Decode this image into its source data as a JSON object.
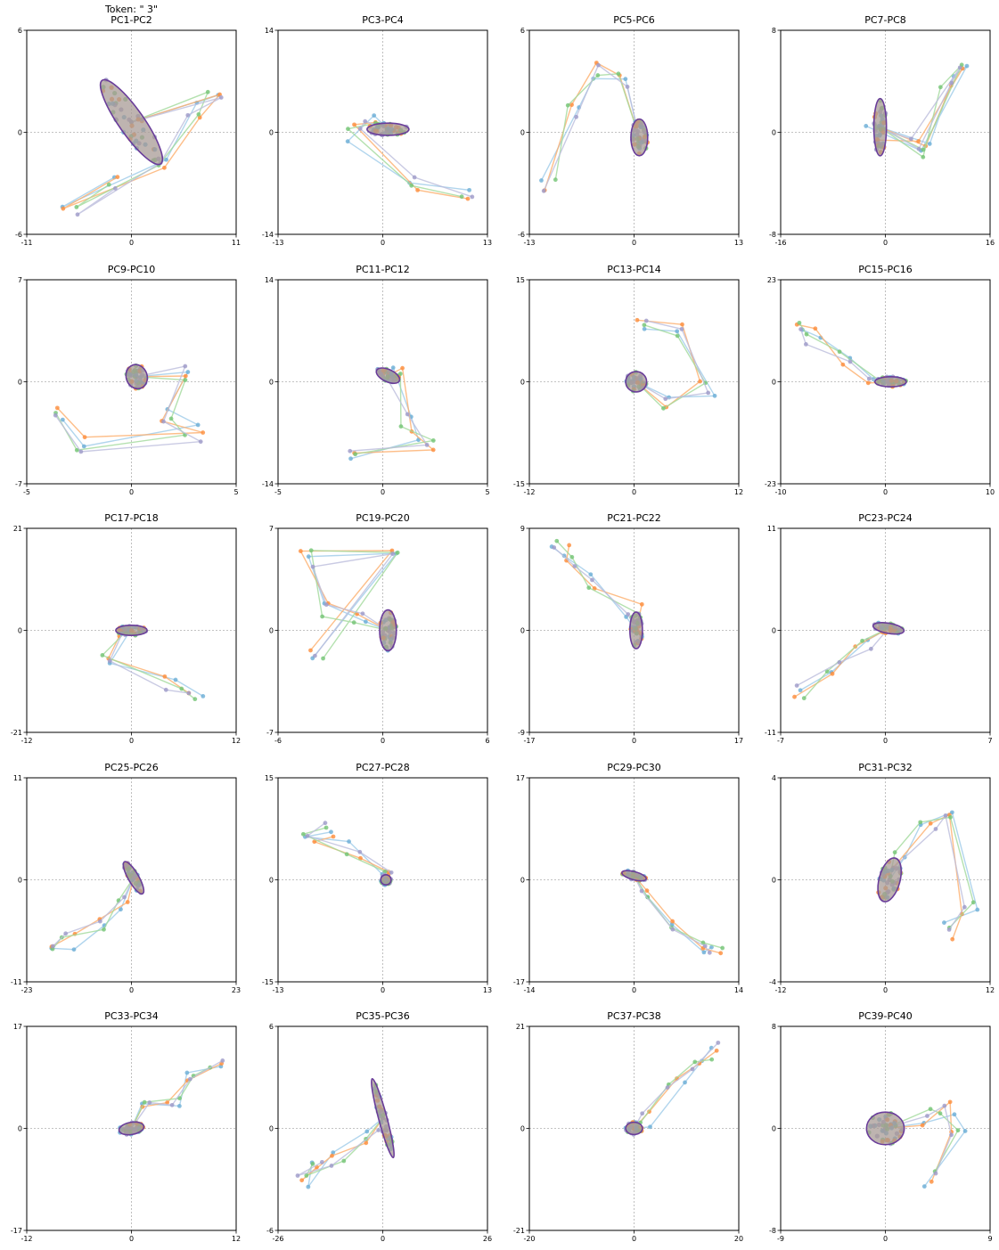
{
  "figure": {
    "suptitle": "Token: \" 3\""
  },
  "chart_data": [
    {
      "type": "scatter",
      "title": "PC1-PC2",
      "xlim": [
        -11,
        11
      ],
      "ylim": [
        -6,
        6
      ],
      "xticks": [
        "-11",
        "0",
        "11"
      ],
      "yticks": [
        "-6",
        "0",
        "6"
      ],
      "grid": false,
      "series_colors": [
        "#9ecae9",
        "#fdae6b",
        "#a1d99b",
        "#bcbddc"
      ]
    },
    {
      "type": "scatter",
      "title": "PC3-PC4",
      "xlim": [
        -13,
        13
      ],
      "ylim": [
        -14,
        14
      ],
      "xticks": [
        "-13",
        "0",
        "13"
      ],
      "yticks": [
        "-14",
        "0",
        "14"
      ],
      "grid": false
    },
    {
      "type": "scatter",
      "title": "PC5-PC6",
      "xlim": [
        -13,
        13
      ],
      "ylim": [
        -6,
        6
      ],
      "xticks": [
        "-13",
        "0",
        "13"
      ],
      "yticks": [
        "-6",
        "0",
        "6"
      ],
      "grid": false
    },
    {
      "type": "scatter",
      "title": "PC7-PC8",
      "xlim": [
        -16,
        16
      ],
      "ylim": [
        -8,
        8
      ],
      "xticks": [
        "-16",
        "0",
        "16"
      ],
      "yticks": [
        "-8",
        "0",
        "8"
      ],
      "grid": false
    },
    {
      "type": "scatter",
      "title": "PC9-PC10",
      "xlim": [
        -5,
        5
      ],
      "ylim": [
        -7,
        7
      ],
      "xticks": [
        "-5",
        "0",
        "5"
      ],
      "yticks": [
        "-7",
        "0",
        "7"
      ],
      "grid": false
    },
    {
      "type": "scatter",
      "title": "PC11-PC12",
      "xlim": [
        -5,
        5
      ],
      "ylim": [
        -14,
        14
      ],
      "xticks": [
        "-5",
        "0",
        "5"
      ],
      "yticks": [
        "-14",
        "0",
        "14"
      ],
      "grid": false
    },
    {
      "type": "scatter",
      "title": "PC13-PC14",
      "xlim": [
        -12,
        12
      ],
      "ylim": [
        -15,
        15
      ],
      "xticks": [
        "-12",
        "0",
        "12"
      ],
      "yticks": [
        "-15",
        "0",
        "15"
      ],
      "grid": false
    },
    {
      "type": "scatter",
      "title": "PC15-PC16",
      "xlim": [
        -10,
        10
      ],
      "ylim": [
        -23,
        23
      ],
      "xticks": [
        "-10",
        "0",
        "10"
      ],
      "yticks": [
        "-23",
        "0",
        "23"
      ],
      "grid": false
    },
    {
      "type": "scatter",
      "title": "PC17-PC18",
      "xlim": [
        -12,
        12
      ],
      "ylim": [
        -21,
        21
      ],
      "xticks": [
        "-12",
        "0",
        "12"
      ],
      "yticks": [
        "-21",
        "0",
        "21"
      ],
      "grid": false
    },
    {
      "type": "scatter",
      "title": "PC19-PC20",
      "xlim": [
        -6,
        6
      ],
      "ylim": [
        -7,
        7
      ],
      "xticks": [
        "-6",
        "0",
        "6"
      ],
      "yticks": [
        "-7",
        "0",
        "7"
      ],
      "grid": false
    },
    {
      "type": "scatter",
      "title": "PC21-PC22",
      "xlim": [
        -17,
        17
      ],
      "ylim": [
        -9,
        9
      ],
      "xticks": [
        "-17",
        "0",
        "17"
      ],
      "yticks": [
        "-9",
        "0",
        "9"
      ],
      "grid": false
    },
    {
      "type": "scatter",
      "title": "PC23-PC24",
      "xlim": [
        -7,
        7
      ],
      "ylim": [
        -11,
        11
      ],
      "xticks": [
        "-7",
        "0",
        "7"
      ],
      "yticks": [
        "-11",
        "0",
        "11"
      ],
      "grid": false
    },
    {
      "type": "scatter",
      "title": "PC25-PC26",
      "xlim": [
        -23,
        23
      ],
      "ylim": [
        -11,
        11
      ],
      "xticks": [
        "-23",
        "0",
        "23"
      ],
      "yticks": [
        "-11",
        "0",
        "11"
      ],
      "grid": false
    },
    {
      "type": "scatter",
      "title": "PC27-PC28",
      "xlim": [
        -13,
        13
      ],
      "ylim": [
        -15,
        15
      ],
      "xticks": [
        "-13",
        "0",
        "13"
      ],
      "yticks": [
        "-15",
        "0",
        "15"
      ],
      "grid": false
    },
    {
      "type": "scatter",
      "title": "PC29-PC30",
      "xlim": [
        -14,
        14
      ],
      "ylim": [
        -17,
        17
      ],
      "xticks": [
        "-14",
        "0",
        "14"
      ],
      "yticks": [
        "-17",
        "0",
        "17"
      ],
      "grid": false
    },
    {
      "type": "scatter",
      "title": "PC31-PC32",
      "xlim": [
        -12,
        12
      ],
      "ylim": [
        -4,
        4
      ],
      "xticks": [
        "-12",
        "0",
        "12"
      ],
      "yticks": [
        "-4",
        "0",
        "4"
      ],
      "grid": false
    },
    {
      "type": "scatter",
      "title": "PC33-PC34",
      "xlim": [
        -12,
        12
      ],
      "ylim": [
        -17,
        17
      ],
      "xticks": [
        "-12",
        "0",
        "12"
      ],
      "yticks": [
        "-17",
        "0",
        "17"
      ],
      "grid": false
    },
    {
      "type": "scatter",
      "title": "PC35-PC36",
      "xlim": [
        -26,
        26
      ],
      "ylim": [
        -6,
        6
      ],
      "xticks": [
        "-26",
        "0",
        "26"
      ],
      "yticks": [
        "-6",
        "0",
        "6"
      ],
      "grid": false
    },
    {
      "type": "scatter",
      "title": "PC37-PC38",
      "xlim": [
        -20,
        20
      ],
      "ylim": [
        -21,
        21
      ],
      "xticks": [
        "-20",
        "0",
        "20"
      ],
      "yticks": [
        "-21",
        "0",
        "21"
      ],
      "grid": false
    },
    {
      "type": "scatter",
      "title": "PC39-PC40",
      "xlim": [
        -9,
        9
      ],
      "ylim": [
        -8,
        8
      ],
      "xticks": [
        "-9",
        "0",
        "9"
      ],
      "yticks": [
        "-8",
        "0",
        "8"
      ],
      "grid": false
    }
  ]
}
